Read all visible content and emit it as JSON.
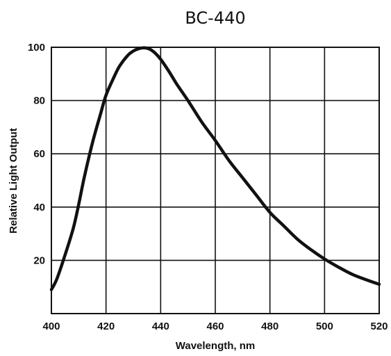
{
  "chart_data": {
    "type": "line",
    "title": "BC-440",
    "xlabel": "Wavelength, nm",
    "ylabel": "Relative Light Output",
    "xlim": [
      400,
      520
    ],
    "ylim": [
      0,
      100
    ],
    "x_ticks": [
      400,
      420,
      440,
      460,
      480,
      500,
      520
    ],
    "y_ticks": [
      20,
      40,
      60,
      80,
      100
    ],
    "x_tick_labels": [
      "400",
      "420",
      "440",
      "460",
      "480",
      "500",
      "520"
    ],
    "y_tick_labels": [
      "20",
      "40",
      "60",
      "80",
      "100"
    ],
    "grid": true,
    "series": [
      {
        "x": [
          400,
          402,
          405,
          408,
          410,
          412,
          415,
          418,
          420,
          423,
          425,
          428,
          430,
          432,
          434,
          436,
          438,
          440,
          443,
          446,
          450,
          455,
          460,
          465,
          470,
          475,
          480,
          485,
          490,
          495,
          500,
          505,
          510,
          515,
          520
        ],
        "values": [
          9,
          13,
          22,
          32,
          41,
          51,
          64,
          75,
          82,
          89,
          93,
          97,
          98.6,
          99.5,
          99.8,
          99.3,
          97.8,
          95.5,
          91,
          86,
          80,
          72,
          65,
          57.5,
          51,
          44.5,
          38,
          33,
          28,
          24,
          20.5,
          17.5,
          14.8,
          12.8,
          11
        ]
      }
    ],
    "line_color": "#111111"
  }
}
